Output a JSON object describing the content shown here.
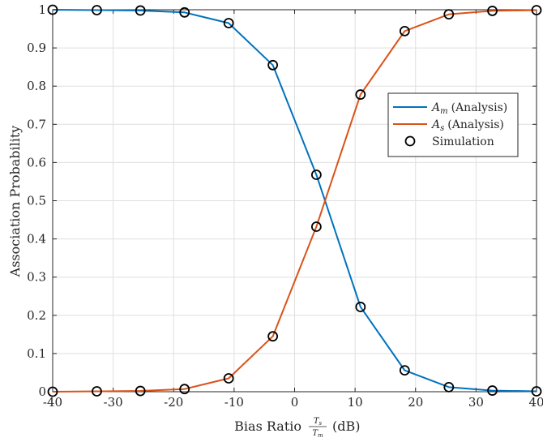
{
  "chart_data": {
    "type": "line",
    "xlabel": "Bias Ratio",
    "xlabel_fraction": {
      "numerator": "T",
      "numerator_sub": "s",
      "denominator": "T",
      "denominator_sub": "m"
    },
    "xlabel_unit": "(dB)",
    "ylabel": "Association Probability",
    "xlim": [
      -40,
      40
    ],
    "ylim": [
      0,
      1
    ],
    "xticks": [
      -40,
      -30,
      -20,
      -10,
      0,
      10,
      20,
      30,
      40
    ],
    "yticks": [
      0,
      0.1,
      0.2,
      0.3,
      0.4,
      0.5,
      0.6,
      0.7,
      0.8,
      0.9,
      1
    ],
    "grid": true,
    "legend_position": "right",
    "colors": {
      "am": "#0072BD",
      "as": "#D95319",
      "simulation": "#000000"
    },
    "x": [
      -40,
      -32.7,
      -25.5,
      -18.2,
      -10.9,
      -3.6,
      3.6,
      10.9,
      18.2,
      25.5,
      32.7,
      40
    ],
    "series": [
      {
        "name": "A_m (Analysis)",
        "legend": {
          "symbol": "A",
          "sub": "m",
          "suffix": "(Analysis)"
        },
        "values": [
          1.0,
          0.999,
          0.998,
          0.993,
          0.965,
          0.855,
          0.568,
          0.222,
          0.056,
          0.012,
          0.003,
          0.001
        ]
      },
      {
        "name": "A_s (Analysis)",
        "legend": {
          "symbol": "A",
          "sub": "s",
          "suffix": "(Analysis)"
        },
        "values": [
          0.0,
          0.001,
          0.002,
          0.007,
          0.035,
          0.145,
          0.432,
          0.778,
          0.944,
          0.988,
          0.997,
          0.999
        ]
      }
    ],
    "simulation": {
      "name": "Simulation",
      "am": [
        1.0,
        0.999,
        0.998,
        0.993,
        0.965,
        0.855,
        0.568,
        0.222,
        0.056,
        0.012,
        0.003,
        0.001
      ],
      "as": [
        0.0,
        0.001,
        0.002,
        0.007,
        0.035,
        0.145,
        0.432,
        0.778,
        0.944,
        0.988,
        0.997,
        0.999
      ]
    }
  }
}
